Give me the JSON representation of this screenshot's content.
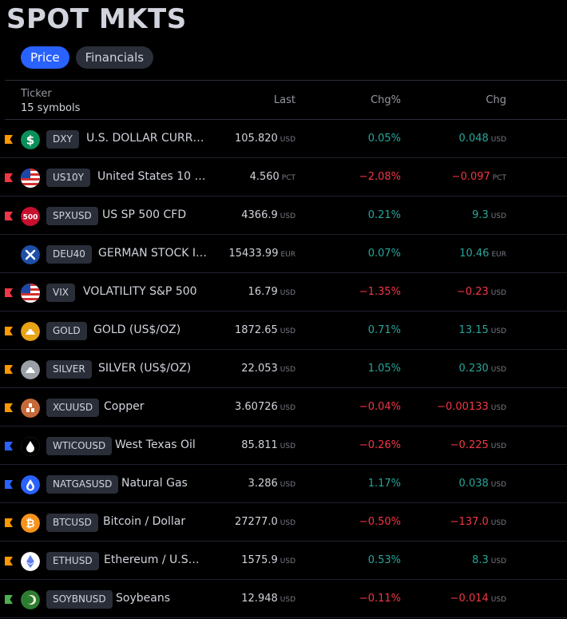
{
  "title": "SPOT MKTS",
  "tabs": [
    {
      "label": "Price",
      "active": true
    },
    {
      "label": "Financials",
      "active": false
    }
  ],
  "header": {
    "ticker": "Ticker",
    "count": "15 symbols",
    "last": "Last",
    "chg_pct": "Chg%",
    "chg": "Chg"
  },
  "colors": {
    "positive": "#26a69a",
    "negative": "#f23645",
    "accent": "#2962ff"
  },
  "rows": [
    {
      "flag": "#ff9800",
      "icon": "dollar-icon",
      "symbol": "DXY",
      "name": "U.S. DOLLAR CURR…",
      "last": "105.820",
      "last_unit": "USD",
      "chg_pct": "0.05%",
      "chg": "0.048",
      "chg_unit": "USD",
      "dir": "pos"
    },
    {
      "flag": "#f23645",
      "icon": "us-flag-icon",
      "symbol": "US10Y",
      "name": "United States 10 …",
      "last": "4.560",
      "last_unit": "PCT",
      "chg_pct": "−2.08%",
      "chg": "−0.097",
      "chg_unit": "PCT",
      "dir": "neg"
    },
    {
      "flag": "#f23645",
      "icon": "sp500-icon",
      "symbol": "SPXUSD",
      "name": "US SP 500 CFD",
      "last": "4366.9",
      "last_unit": "USD",
      "chg_pct": "0.21%",
      "chg": "9.3",
      "chg_unit": "USD",
      "dir": "pos"
    },
    {
      "flag": "",
      "icon": "dax-icon",
      "symbol": "DEU40",
      "name": "GERMAN STOCK I…",
      "last": "15433.99",
      "last_unit": "EUR",
      "chg_pct": "0.07%",
      "chg": "10.46",
      "chg_unit": "EUR",
      "dir": "pos"
    },
    {
      "flag": "#f23645",
      "icon": "us-flag-icon",
      "symbol": "VIX",
      "name": "VOLATILITY S&P 500",
      "last": "16.79",
      "last_unit": "USD",
      "chg_pct": "−1.35%",
      "chg": "−0.23",
      "chg_unit": "USD",
      "dir": "neg"
    },
    {
      "flag": "#ff9800",
      "icon": "gold-icon",
      "symbol": "GOLD",
      "name": "GOLD (US$/OZ)",
      "last": "1872.65",
      "last_unit": "USD",
      "chg_pct": "0.71%",
      "chg": "13.15",
      "chg_unit": "USD",
      "dir": "pos"
    },
    {
      "flag": "#ff9800",
      "icon": "silver-icon",
      "symbol": "SILVER",
      "name": "SILVER (US$/OZ)",
      "last": "22.053",
      "last_unit": "USD",
      "chg_pct": "1.05%",
      "chg": "0.230",
      "chg_unit": "USD",
      "dir": "pos"
    },
    {
      "flag": "#ff9800",
      "icon": "copper-icon",
      "symbol": "XCUUSD",
      "name": "Copper",
      "last": "3.60726",
      "last_unit": "USD",
      "chg_pct": "−0.04%",
      "chg": "−0.00133",
      "chg_unit": "USD",
      "dir": "neg"
    },
    {
      "flag": "#2962ff",
      "icon": "oil-drop-icon",
      "symbol": "WTICOUSD",
      "name": "West Texas Oil",
      "last": "85.811",
      "last_unit": "USD",
      "chg_pct": "−0.26%",
      "chg": "−0.225",
      "chg_unit": "USD",
      "dir": "neg"
    },
    {
      "flag": "#2962ff",
      "icon": "gas-drop-icon",
      "symbol": "NATGASUSD",
      "name": "Natural Gas",
      "last": "3.286",
      "last_unit": "USD",
      "chg_pct": "1.17%",
      "chg": "0.038",
      "chg_unit": "USD",
      "dir": "pos"
    },
    {
      "flag": "#ff9800",
      "icon": "bitcoin-icon",
      "symbol": "BTCUSD",
      "name": "Bitcoin / Dollar",
      "last": "27277.0",
      "last_unit": "USD",
      "chg_pct": "−0.50%",
      "chg": "−137.0",
      "chg_unit": "USD",
      "dir": "neg"
    },
    {
      "flag": "#ff9800",
      "icon": "ethereum-icon",
      "symbol": "ETHUSD",
      "name": "Ethereum / U.S…",
      "last": "1575.9",
      "last_unit": "USD",
      "chg_pct": "0.53%",
      "chg": "8.3",
      "chg_unit": "USD",
      "dir": "pos"
    },
    {
      "flag": "#4caf50",
      "icon": "soybean-icon",
      "symbol": "SOYBNUSD",
      "name": "Soybeans",
      "last": "12.948",
      "last_unit": "USD",
      "chg_pct": "−0.11%",
      "chg": "−0.014",
      "chg_unit": "USD",
      "dir": "neg"
    }
  ]
}
